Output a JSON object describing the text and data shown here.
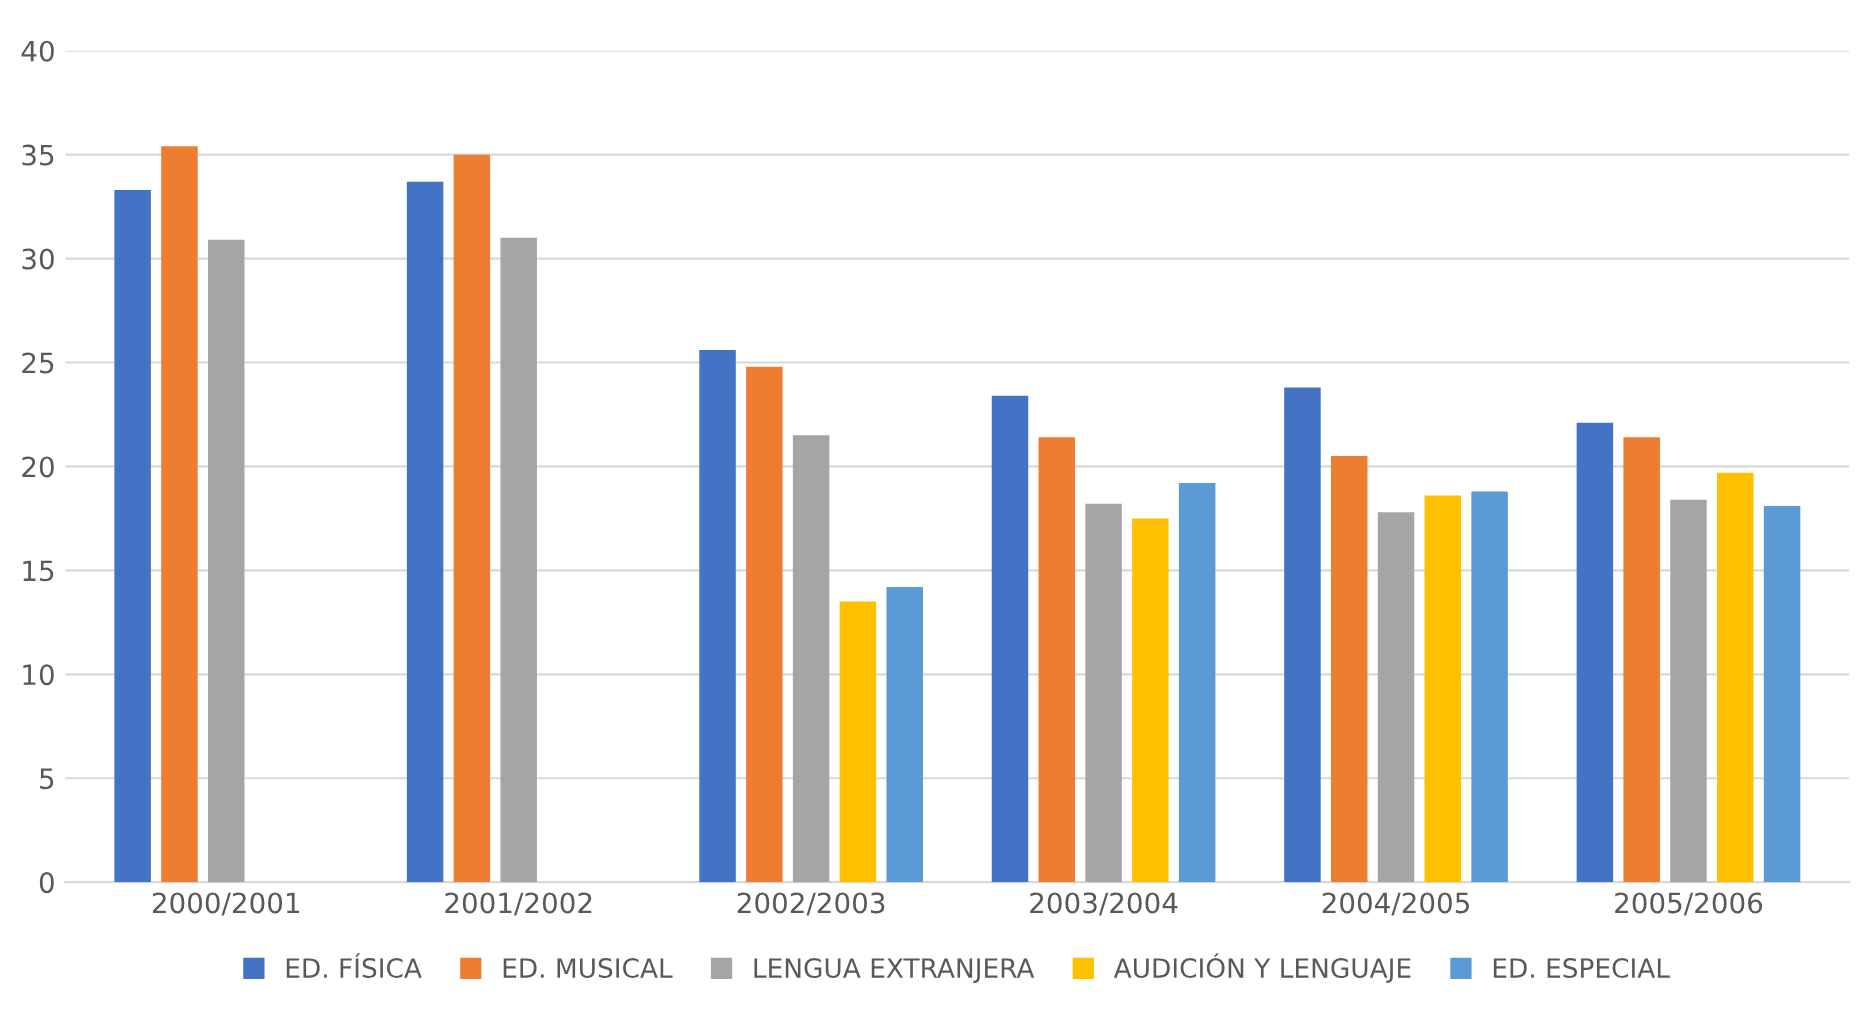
{
  "chart_data": {
    "type": "bar",
    "categories": [
      "2000/2001",
      "2001/2002",
      "2002/2003",
      "2003/2004",
      "2004/2005",
      "2005/2006"
    ],
    "series": [
      {
        "name": "ED. FÍSICA",
        "color": "#4472c4",
        "values": [
          33.3,
          33.7,
          25.6,
          23.4,
          23.8,
          22.1
        ]
      },
      {
        "name": "ED. MUSICAL",
        "color": "#ed7d31",
        "values": [
          35.4,
          35.0,
          24.8,
          21.4,
          20.5,
          21.4
        ]
      },
      {
        "name": "LENGUA EXTRANJERA",
        "color": "#a5a5a5",
        "values": [
          30.9,
          31.0,
          21.5,
          18.2,
          17.8,
          18.4
        ]
      },
      {
        "name": "AUDICIÓN Y LENGUAJE",
        "color": "#ffc000",
        "values": [
          null,
          null,
          13.5,
          17.5,
          18.6,
          19.7
        ]
      },
      {
        "name": "ED. ESPECIAL",
        "color": "#5b9bd5",
        "values": [
          null,
          null,
          14.2,
          19.2,
          18.8,
          18.1
        ]
      }
    ],
    "ylim": [
      0,
      40
    ],
    "yticks": [
      0,
      5,
      10,
      15,
      20,
      25,
      30,
      35,
      40
    ],
    "grid": "y",
    "legend": "bottom"
  }
}
